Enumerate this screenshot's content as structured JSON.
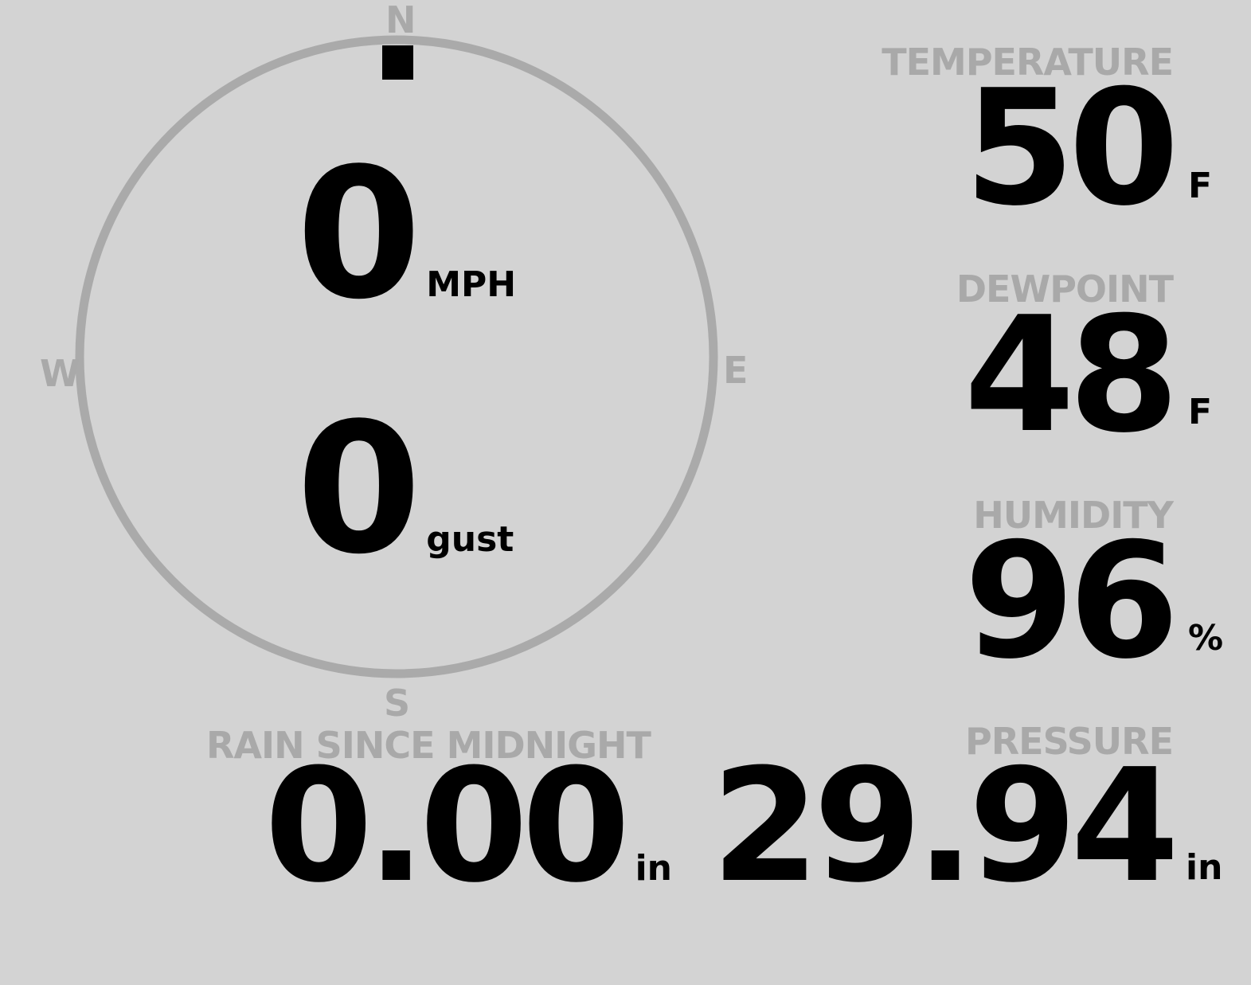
{
  "wind": {
    "speed": "0",
    "speed_unit": "MPH",
    "gust": "0",
    "gust_unit": "gust",
    "direction_deg": 0,
    "cardinals": {
      "n": "N",
      "e": "E",
      "s": "S",
      "w": "W"
    }
  },
  "temperature": {
    "label": "TEMPERATURE",
    "value": "50",
    "unit": "F"
  },
  "dewpoint": {
    "label": "DEWPOINT",
    "value": "48",
    "unit": "F"
  },
  "humidity": {
    "label": "HUMIDITY",
    "value": "96",
    "unit": "%"
  },
  "rain": {
    "label": "RAIN SINCE MIDNIGHT",
    "value": "0.00",
    "unit": "in"
  },
  "pressure": {
    "label": "PRESSURE",
    "value": "29.94",
    "unit": "in"
  },
  "colors": {
    "background": "#d3d3d3",
    "label": "#a9a9a9",
    "value": "#000000",
    "ring": "#aaaaaa"
  }
}
